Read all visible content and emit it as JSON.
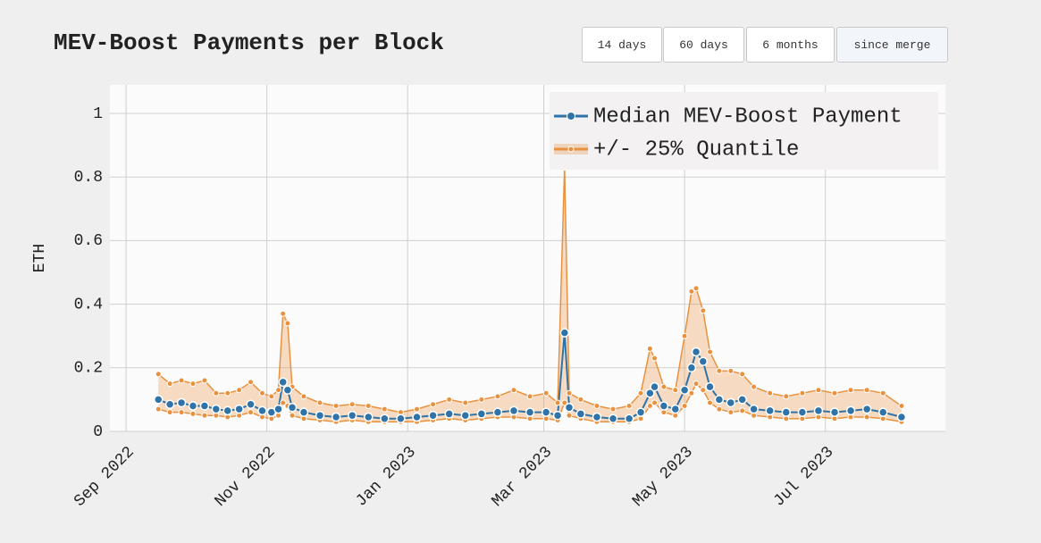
{
  "buttons": [
    "14 days",
    "60 days",
    "6 months",
    "since merge"
  ],
  "chart_data": {
    "type": "line",
    "title": "MEV-Boost Payments per Block",
    "y_label": "ETH",
    "xlim": [
      "2022-08-25",
      "2023-08-22"
    ],
    "xticks": [
      {
        "value": "2022-09-01",
        "label": "Sep 2022"
      },
      {
        "value": "2022-11-01",
        "label": "Nov 2022"
      },
      {
        "value": "2023-01-01",
        "label": "Jan 2023"
      },
      {
        "value": "2023-03-01",
        "label": "Mar 2023"
      },
      {
        "value": "2023-05-01",
        "label": "May 2023"
      },
      {
        "value": "2023-07-01",
        "label": "Jul 2023"
      }
    ],
    "ylim": [
      0,
      1.09
    ],
    "yticks": [
      0,
      0.2,
      0.4,
      0.6,
      0.8,
      1
    ],
    "grid": true,
    "legend": "top-right",
    "x": [
      "2022-09-15",
      "2022-09-20",
      "2022-09-25",
      "2022-09-30",
      "2022-10-05",
      "2022-10-10",
      "2022-10-15",
      "2022-10-20",
      "2022-10-25",
      "2022-10-30",
      "2022-11-03",
      "2022-11-06",
      "2022-11-08",
      "2022-11-10",
      "2022-11-12",
      "2022-11-17",
      "2022-11-24",
      "2022-12-01",
      "2022-12-08",
      "2022-12-15",
      "2022-12-22",
      "2022-12-29",
      "2023-01-05",
      "2023-01-12",
      "2023-01-19",
      "2023-01-26",
      "2023-02-02",
      "2023-02-09",
      "2023-02-16",
      "2023-02-23",
      "2023-03-02",
      "2023-03-07",
      "2023-03-10",
      "2023-03-12",
      "2023-03-17",
      "2023-03-24",
      "2023-03-31",
      "2023-04-07",
      "2023-04-12",
      "2023-04-16",
      "2023-04-18",
      "2023-04-22",
      "2023-04-27",
      "2023-05-01",
      "2023-05-04",
      "2023-05-06",
      "2023-05-09",
      "2023-05-12",
      "2023-05-16",
      "2023-05-21",
      "2023-05-26",
      "2023-05-31",
      "2023-06-07",
      "2023-06-14",
      "2023-06-21",
      "2023-06-28",
      "2023-07-05",
      "2023-07-12",
      "2023-07-19",
      "2023-07-26",
      "2023-08-03"
    ],
    "series": [
      {
        "name": "Median MEV-Boost Payment",
        "color": "#2f73a8",
        "values": [
          0.1,
          0.085,
          0.09,
          0.08,
          0.08,
          0.07,
          0.065,
          0.07,
          0.085,
          0.065,
          0.06,
          0.07,
          0.155,
          0.13,
          0.075,
          0.06,
          0.05,
          0.045,
          0.05,
          0.045,
          0.04,
          0.04,
          0.045,
          0.05,
          0.055,
          0.05,
          0.055,
          0.06,
          0.065,
          0.06,
          0.06,
          0.05,
          0.31,
          0.075,
          0.055,
          0.045,
          0.04,
          0.04,
          0.06,
          0.12,
          0.14,
          0.08,
          0.07,
          0.13,
          0.2,
          0.25,
          0.22,
          0.14,
          0.1,
          0.09,
          0.1,
          0.07,
          0.065,
          0.06,
          0.06,
          0.065,
          0.06,
          0.065,
          0.07,
          0.06,
          0.045
        ]
      },
      {
        "name": "+/- 25% Quantile",
        "color": "#e8923f",
        "values": [
          0.18,
          0.15,
          0.16,
          0.15,
          0.16,
          0.12,
          0.12,
          0.13,
          0.155,
          0.12,
          0.11,
          0.13,
          0.37,
          0.34,
          0.14,
          0.11,
          0.09,
          0.08,
          0.085,
          0.08,
          0.07,
          0.06,
          0.07,
          0.085,
          0.1,
          0.09,
          0.1,
          0.11,
          0.13,
          0.11,
          0.12,
          0.09,
          0.83,
          0.12,
          0.1,
          0.08,
          0.07,
          0.08,
          0.12,
          0.26,
          0.23,
          0.14,
          0.13,
          0.3,
          0.44,
          0.45,
          0.38,
          0.25,
          0.19,
          0.19,
          0.18,
          0.14,
          0.12,
          0.11,
          0.12,
          0.13,
          0.12,
          0.13,
          0.13,
          0.12,
          0.08
        ],
        "lower": [
          0.07,
          0.06,
          0.06,
          0.055,
          0.05,
          0.05,
          0.045,
          0.05,
          0.06,
          0.045,
          0.04,
          0.05,
          0.09,
          0.08,
          0.05,
          0.04,
          0.035,
          0.03,
          0.035,
          0.03,
          0.03,
          0.03,
          0.03,
          0.035,
          0.04,
          0.035,
          0.04,
          0.045,
          0.045,
          0.04,
          0.04,
          0.035,
          0.09,
          0.05,
          0.04,
          0.03,
          0.03,
          0.03,
          0.04,
          0.08,
          0.09,
          0.06,
          0.05,
          0.08,
          0.12,
          0.15,
          0.13,
          0.09,
          0.07,
          0.06,
          0.065,
          0.05,
          0.045,
          0.04,
          0.04,
          0.045,
          0.04,
          0.045,
          0.045,
          0.04,
          0.03
        ]
      }
    ]
  }
}
